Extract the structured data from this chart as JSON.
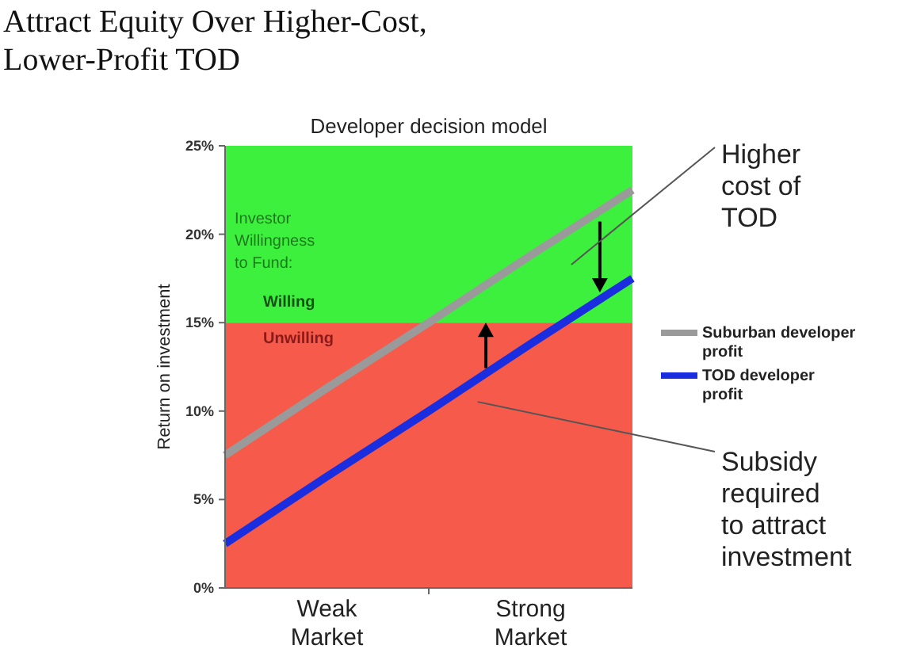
{
  "chart_data": {
    "type": "line",
    "title": "Attract Equity Over Higher-Cost, Lower-Profit TOD",
    "subtitle": "Developer decision model",
    "ylabel": "Return on investment",
    "categories": [
      null,
      "Weak Market",
      null,
      "Strong Market",
      null
    ],
    "ylim": [
      0,
      25
    ],
    "yticks": [
      {
        "value": 0,
        "label": "0%"
      },
      {
        "value": 5,
        "label": "5%"
      },
      {
        "value": 10,
        "label": "10%"
      },
      {
        "value": 15,
        "label": "15%"
      },
      {
        "value": 20,
        "label": "20%"
      },
      {
        "value": 25,
        "label": "25%"
      }
    ],
    "series": [
      {
        "name": "Suburban developer profit",
        "color": "#9a9a9a",
        "values": [
          7.5,
          11.3,
          15,
          18.8,
          22.5
        ]
      },
      {
        "name": "TOD developer profit",
        "color": "#1a2ee0",
        "values": [
          2.5,
          6.3,
          10,
          13.8,
          17.5
        ]
      }
    ],
    "bands": [
      {
        "axis": "y",
        "from": 15,
        "to": 25,
        "label": "Willing",
        "color": "#3ef03e"
      },
      {
        "axis": "y",
        "from": 0,
        "to": 15,
        "label": "Unwilling",
        "color": "#f55a4a"
      }
    ],
    "annotations": [
      "Investor Willingness to Fund:",
      "Higher cost of TOD",
      "Subsidy required to attract investment"
    ],
    "legend": "right"
  }
}
